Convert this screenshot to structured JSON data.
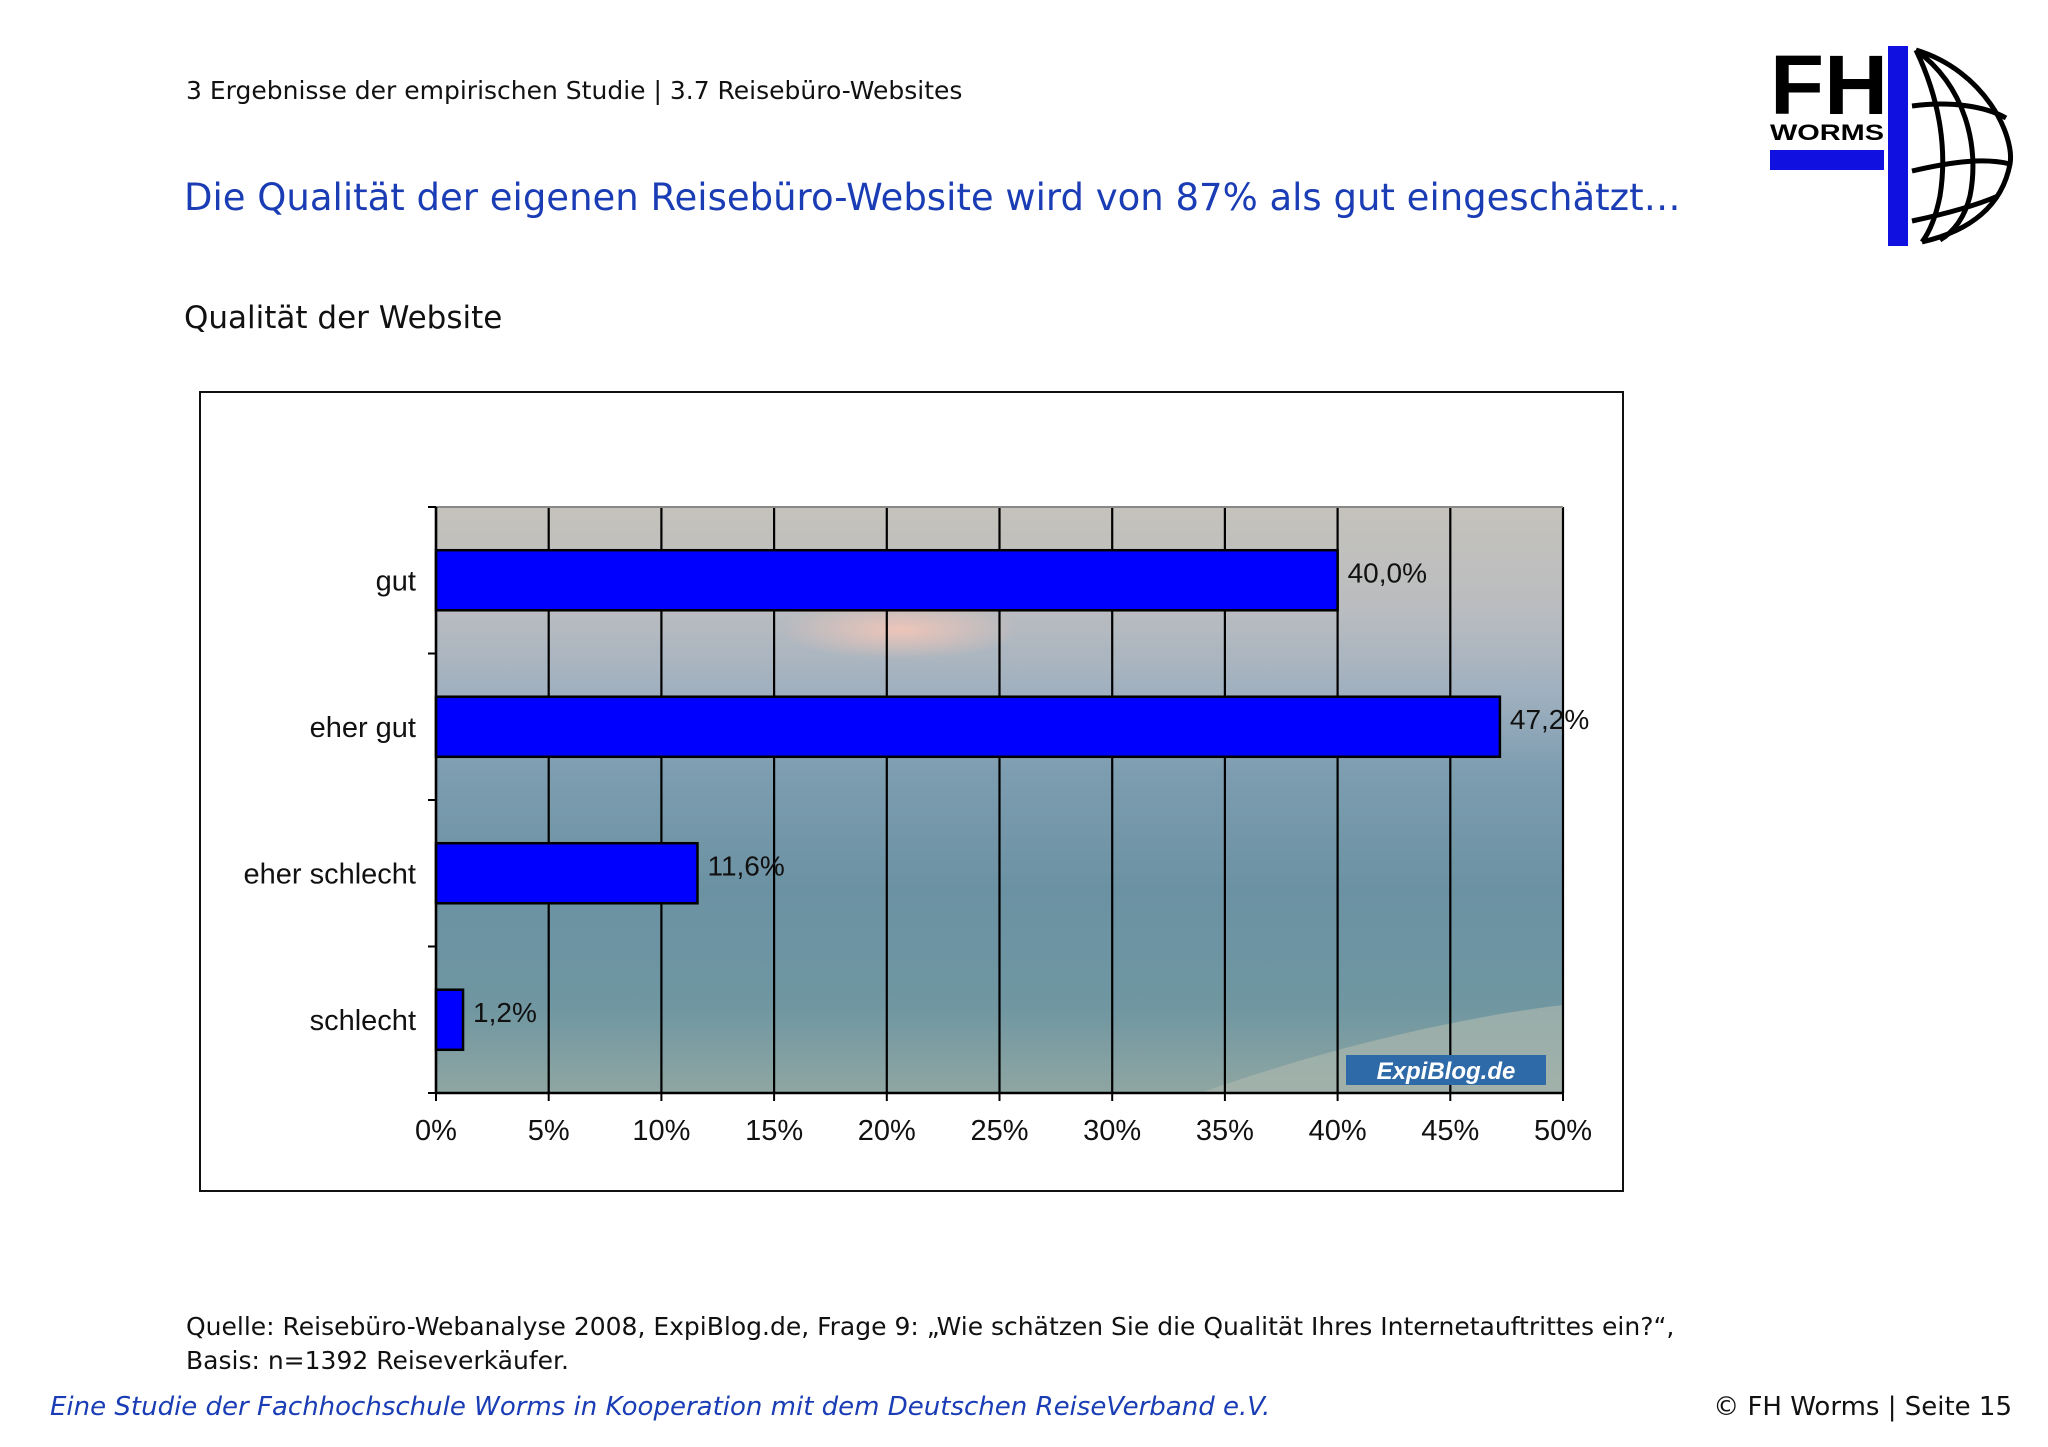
{
  "header": {
    "breadcrumb": "3 Ergebnisse der empirischen Studie | 3.7 Reisebüro-Websites",
    "headline": "Die Qualität der eigenen Reisebüro-Website wird von 87% als gut eingeschätzt…",
    "subtitle": "Qualität der Website"
  },
  "logo": {
    "text_top": "FH",
    "text_bottom": "WORMS"
  },
  "chart_data": {
    "type": "bar",
    "orientation": "horizontal",
    "title": "Qualität der Website",
    "categories": [
      "gut",
      "eher gut",
      "eher schlecht",
      "schlecht"
    ],
    "values": [
      40.0,
      47.2,
      11.6,
      1.2
    ],
    "value_labels": [
      "40,0%",
      "47,2%",
      "11,6%",
      "1,2%"
    ],
    "xlim": [
      0,
      50
    ],
    "xticks": [
      0,
      5,
      10,
      15,
      20,
      25,
      30,
      35,
      40,
      45,
      50
    ],
    "xtick_labels": [
      "0%",
      "5%",
      "10%",
      "15%",
      "20%",
      "25%",
      "30%",
      "35%",
      "40%",
      "45%",
      "50%"
    ],
    "grid": true,
    "watermark": "ExpiBlog.de",
    "colors": {
      "bar": "#0000ff",
      "bar_edge": "#000000"
    }
  },
  "footer": {
    "source": "Quelle: Reisebüro-Webanalyse 2008, ExpiBlog.de, Frage 9: „Wie schätzen Sie die Qualität Ihres Internetauftrittes ein?“, Basis: n=1392 Reiseverkäufer.",
    "study_note": "Eine Studie der Fachhochschule Worms in Kooperation mit dem Deutschen ReiseVerband e.V.",
    "copyright": "© FH Worms | Seite 15"
  },
  "colors": {
    "accent": "#1a3db5",
    "logo_blue": "#1010e0"
  }
}
